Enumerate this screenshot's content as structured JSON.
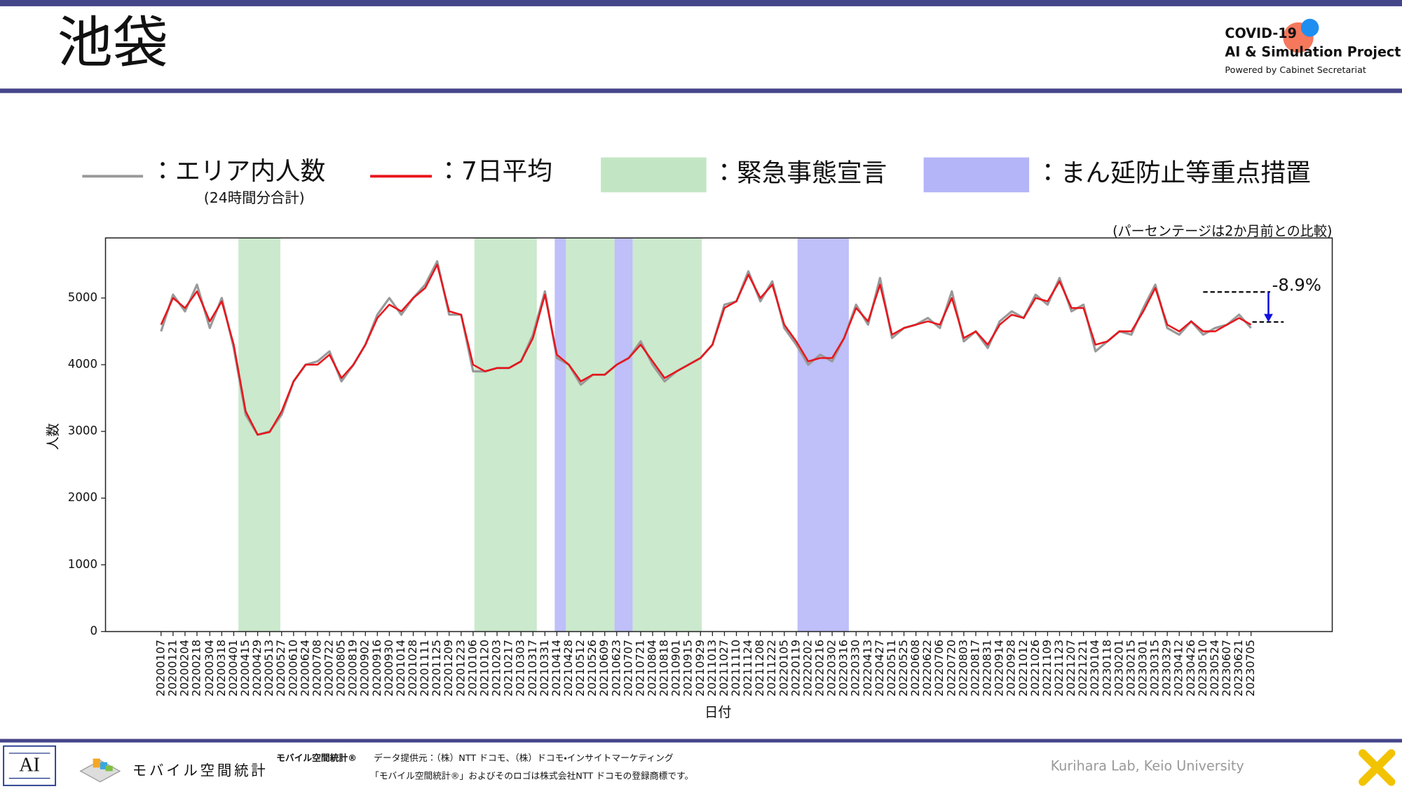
{
  "header": {
    "title": "池袋",
    "logo": [
      "COVID-19",
      "AI & Simulation Project",
      "Powered by Cabinet Secretariat"
    ]
  },
  "legend_note": "(24時間分合計)",
  "chart_data": {
    "type": "line",
    "note": "(パーセンテージは2か月前との比較)",
    "x_label": "日付",
    "y_label": "人数",
    "xlim": [
      "20191103",
      "20231008"
    ],
    "ylim": [
      0,
      5900
    ],
    "yticks": [
      0,
      1000,
      2000,
      3000,
      4000,
      5000
    ],
    "xticks": [
      "20200107",
      "20200121",
      "20200204",
      "20200218",
      "20200304",
      "20200318",
      "20200401",
      "20200415",
      "20200429",
      "20200513",
      "20200527",
      "20200610",
      "20200624",
      "20200708",
      "20200722",
      "20200805",
      "20200819",
      "20200902",
      "20200916",
      "20200930",
      "20201014",
      "20201028",
      "20201111",
      "20201125",
      "20201209",
      "20201223",
      "20210106",
      "20210120",
      "20210203",
      "20210217",
      "20210303",
      "20210317",
      "20210331",
      "20210414",
      "20210428",
      "20210512",
      "20210526",
      "20210609",
      "20210623",
      "20210707",
      "20210721",
      "20210804",
      "20210818",
      "20210901",
      "20210915",
      "20210929",
      "20211013",
      "20211027",
      "20211110",
      "20211124",
      "20211208",
      "20211222",
      "20220105",
      "20220119",
      "20220202",
      "20220216",
      "20220302",
      "20220316",
      "20220330",
      "20220413",
      "20220427",
      "20220511",
      "20220525",
      "20220608",
      "20220622",
      "20220706",
      "20220720",
      "20220803",
      "20220817",
      "20220831",
      "20220914",
      "20220928",
      "20221012",
      "20221026",
      "20221109",
      "20221123",
      "20221207",
      "20221221",
      "20230104",
      "20230118",
      "20230201",
      "20230215",
      "20230301",
      "20230315",
      "20230329",
      "20230412",
      "20230426",
      "20230510",
      "20230524",
      "20230607",
      "20230621",
      "20230705"
    ],
    "x": [
      "20200107",
      "20200121",
      "20200204",
      "20200218",
      "20200304",
      "20200318",
      "20200401",
      "20200415",
      "20200429",
      "20200513",
      "20200527",
      "20200610",
      "20200624",
      "20200708",
      "20200722",
      "20200805",
      "20200819",
      "20200902",
      "20200916",
      "20200930",
      "20201014",
      "20201028",
      "20201111",
      "20201125",
      "20201209",
      "20201223",
      "20210106",
      "20210120",
      "20210203",
      "20210217",
      "20210303",
      "20210317",
      "20210331",
      "20210414",
      "20210428",
      "20210512",
      "20210526",
      "20210609",
      "20210623",
      "20210707",
      "20210721",
      "20210804",
      "20210818",
      "20210901",
      "20210915",
      "20210929",
      "20211013",
      "20211027",
      "20211110",
      "20211124",
      "20211208",
      "20211222",
      "20220105",
      "20220119",
      "20220202",
      "20220216",
      "20220302",
      "20220316",
      "20220330",
      "20220413",
      "20220427",
      "20220511",
      "20220525",
      "20220608",
      "20220622",
      "20220706",
      "20220720",
      "20220803",
      "20220817",
      "20220831",
      "20220914",
      "20220928",
      "20221012",
      "20221026",
      "20221109",
      "20221123",
      "20221207",
      "20221221",
      "20230104",
      "20230118",
      "20230201",
      "20230215",
      "20230301",
      "20230315",
      "20230329",
      "20230412",
      "20230426",
      "20230510",
      "20230524",
      "20230607",
      "20230621",
      "20230705"
    ],
    "series": [
      {
        "name": "：エリア内人数",
        "color": "#999999",
        "values": [
          4500,
          5050,
          4800,
          5200,
          4550,
          5000,
          4250,
          3250,
          2950,
          3000,
          3250,
          3750,
          4000,
          4050,
          4200,
          3750,
          4000,
          4300,
          4750,
          5000,
          4750,
          5000,
          5200,
          5550,
          4750,
          4750,
          3900,
          3900,
          3950,
          3950,
          4050,
          4450,
          5100,
          4100,
          4000,
          3700,
          3850,
          3850,
          4000,
          4100,
          4350,
          4000,
          3750,
          3900,
          4000,
          4100,
          4300,
          4900,
          4950,
          5400,
          4950,
          5250,
          4550,
          4300,
          4000,
          4150,
          4050,
          4400,
          4900,
          4600,
          5300,
          4400,
          4550,
          4600,
          4700,
          4550,
          5100,
          4350,
          4500,
          4250,
          4650,
          4800,
          4700,
          5050,
          4900,
          5300,
          4800,
          4900,
          4200,
          4350,
          4500,
          4450,
          4850,
          5200,
          4550,
          4450,
          4650,
          4450,
          4550,
          4600,
          4750,
          4550
        ]
      },
      {
        "name": "：7日平均",
        "color": "#e8161c",
        "values": [
          4600,
          5000,
          4850,
          5100,
          4650,
          4950,
          4300,
          3300,
          2950,
          2990,
          3300,
          3750,
          4000,
          4000,
          4150,
          3800,
          4000,
          4300,
          4700,
          4900,
          4800,
          5000,
          5150,
          5500,
          4800,
          4750,
          4000,
          3900,
          3950,
          3950,
          4050,
          4400,
          5050,
          4150,
          4000,
          3750,
          3850,
          3850,
          4000,
          4100,
          4300,
          4050,
          3800,
          3900,
          4000,
          4100,
          4300,
          4850,
          4950,
          5350,
          5000,
          5200,
          4600,
          4350,
          4050,
          4100,
          4100,
          4400,
          4850,
          4650,
          5200,
          4450,
          4550,
          4600,
          4650,
          4600,
          5000,
          4400,
          4500,
          4300,
          4600,
          4750,
          4700,
          5000,
          4950,
          5250,
          4850,
          4850,
          4300,
          4350,
          4500,
          4500,
          4800,
          5150,
          4600,
          4500,
          4650,
          4500,
          4500,
          4600,
          4700,
          4600
        ]
      }
    ],
    "bands": [
      {
        "name": "：緊急事態宣言",
        "color": "#c2e6c4",
        "ranges": [
          {
            "start": "20200407",
            "end": "20200525"
          },
          {
            "start": "20210108",
            "end": "20210321"
          },
          {
            "start": "20210425",
            "end": "20210620"
          },
          {
            "start": "20210712",
            "end": "20210930"
          }
        ]
      },
      {
        "name": "：まん延防止等重点措置",
        "color": "#b4b4f8",
        "ranges": [
          {
            "start": "20210412",
            "end": "20210424"
          },
          {
            "start": "20210621",
            "end": "20210711"
          },
          {
            "start": "20220121",
            "end": "20220321"
          }
        ]
      }
    ],
    "annotation": {
      "text": "-8.9%",
      "date": "20230510",
      "from": 5090,
      "to": 4640
    }
  },
  "footer": {
    "brand": "モバイル空間統計",
    "brand_mark": "モバイル空間統計®",
    "provider": "データ提供元：（株）NTT ドコモ、（株）ドコモ・インサイトマーケティング",
    "trademark": "「モバイル空間統計®」およびそのロゴは株式会社NTT ドコモの登録商標です。",
    "lab": "Kurihara Lab, Keio University"
  }
}
